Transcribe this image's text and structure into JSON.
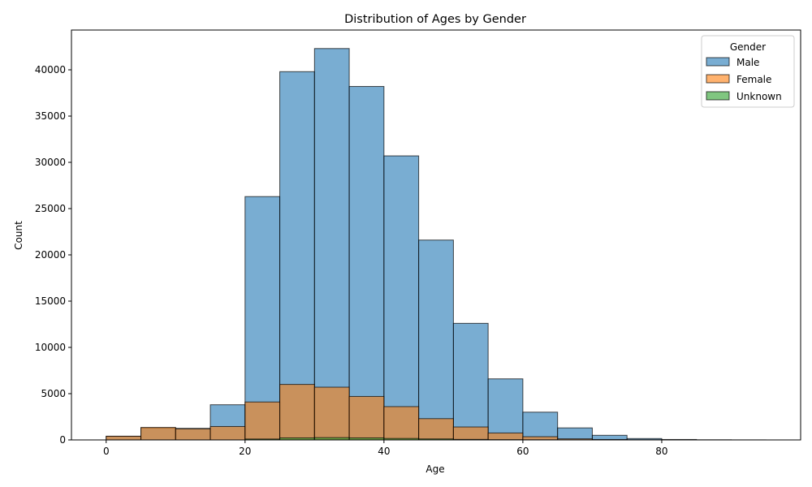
{
  "chart_data": {
    "type": "bar",
    "subtype": "overlapping-histogram",
    "title": "Distribution of Ages by Gender",
    "xlabel": "Age",
    "ylabel": "Count",
    "xlim": [
      -5,
      100
    ],
    "ylim": [
      0,
      44300
    ],
    "x_ticks": [
      0,
      20,
      40,
      60,
      80
    ],
    "y_ticks": [
      0,
      5000,
      10000,
      15000,
      20000,
      25000,
      30000,
      35000,
      40000
    ],
    "bin_edges": [
      0,
      5,
      10,
      15,
      20,
      25,
      30,
      35,
      40,
      45,
      50,
      55,
      60,
      65,
      70,
      75,
      80,
      85,
      90,
      95
    ],
    "legend": {
      "title": "Gender",
      "position": "top-right"
    },
    "grid": false,
    "series": [
      {
        "name": "Male",
        "color": "#1f77b4",
        "values": [
          400,
          1300,
          1250,
          3800,
          26300,
          39800,
          42300,
          38200,
          30700,
          21600,
          12600,
          6600,
          3000,
          1300,
          500,
          150,
          50,
          15,
          5
        ]
      },
      {
        "name": "Female",
        "color": "#ff7f0e",
        "values": [
          400,
          1350,
          1200,
          1450,
          4100,
          6000,
          5700,
          4700,
          3600,
          2300,
          1400,
          750,
          350,
          120,
          50,
          20,
          5,
          0,
          0
        ]
      },
      {
        "name": "Unknown",
        "color": "#2ca02c",
        "values": [
          0,
          0,
          0,
          0,
          100,
          220,
          250,
          220,
          160,
          110,
          60,
          30,
          15,
          5,
          0,
          0,
          0,
          0,
          0
        ]
      }
    ]
  }
}
